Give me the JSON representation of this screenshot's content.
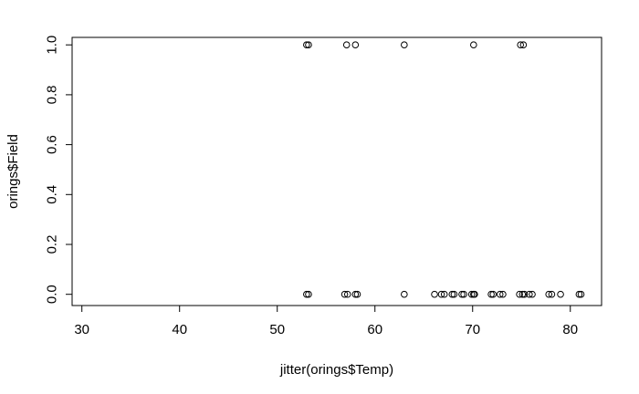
{
  "chart_data": {
    "type": "scatter",
    "xlabel": "jitter(orings$Temp)",
    "ylabel": "orings$Field",
    "xlim": [
      29,
      83.2
    ],
    "ylim": [
      -0.045,
      1.03
    ],
    "xticks": [
      30,
      40,
      50,
      60,
      70,
      80
    ],
    "yticks": [
      0.0,
      0.2,
      0.4,
      0.6,
      0.8,
      1.0
    ],
    "xtick_labels": [
      "30",
      "40",
      "50",
      "60",
      "70",
      "80"
    ],
    "ytick_labels": [
      "0.0",
      "0.2",
      "0.4",
      "0.6",
      "0.8",
      "1.0"
    ],
    "grid": false,
    "series": [
      {
        "points": [
          {
            "x": 53.0,
            "y": 1
          },
          {
            "x": 53.2,
            "y": 1
          },
          {
            "x": 57.1,
            "y": 1
          },
          {
            "x": 58.0,
            "y": 1
          },
          {
            "x": 63.0,
            "y": 1
          },
          {
            "x": 70.1,
            "y": 1
          },
          {
            "x": 74.9,
            "y": 1
          },
          {
            "x": 75.2,
            "y": 1
          },
          {
            "x": 53.0,
            "y": 0
          },
          {
            "x": 53.2,
            "y": 0
          },
          {
            "x": 56.9,
            "y": 0
          },
          {
            "x": 57.2,
            "y": 0
          },
          {
            "x": 58.0,
            "y": 0
          },
          {
            "x": 58.2,
            "y": 0
          },
          {
            "x": 63.0,
            "y": 0
          },
          {
            "x": 66.1,
            "y": 0
          },
          {
            "x": 66.8,
            "y": 0
          },
          {
            "x": 67.1,
            "y": 0
          },
          {
            "x": 67.9,
            "y": 0
          },
          {
            "x": 68.1,
            "y": 0
          },
          {
            "x": 68.9,
            "y": 0
          },
          {
            "x": 69.1,
            "y": 0
          },
          {
            "x": 69.9,
            "y": 0
          },
          {
            "x": 70.1,
            "y": 0
          },
          {
            "x": 70.2,
            "y": 0
          },
          {
            "x": 71.9,
            "y": 0
          },
          {
            "x": 72.1,
            "y": 0
          },
          {
            "x": 72.8,
            "y": 0
          },
          {
            "x": 73.1,
            "y": 0
          },
          {
            "x": 74.8,
            "y": 0
          },
          {
            "x": 75.1,
            "y": 0
          },
          {
            "x": 75.3,
            "y": 0
          },
          {
            "x": 75.8,
            "y": 0
          },
          {
            "x": 76.1,
            "y": 0
          },
          {
            "x": 77.8,
            "y": 0
          },
          {
            "x": 78.1,
            "y": 0
          },
          {
            "x": 79.0,
            "y": 0
          },
          {
            "x": 80.9,
            "y": 0
          },
          {
            "x": 81.1,
            "y": 0
          }
        ]
      }
    ]
  }
}
